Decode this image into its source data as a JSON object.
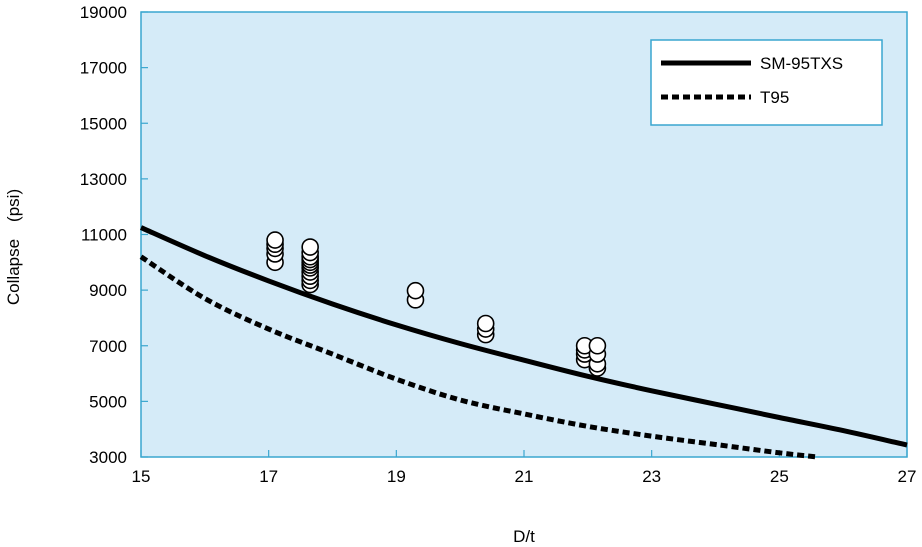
{
  "chart_data": {
    "type": "scatter",
    "xlabel": "D/t",
    "ylabel": "Collapse　(psi)",
    "xlim": [
      15,
      27
    ],
    "ylim": [
      3000,
      19000
    ],
    "xticks": [
      15,
      17,
      19,
      21,
      23,
      25,
      27
    ],
    "yticks": [
      3000,
      5000,
      7000,
      9000,
      11000,
      13000,
      15000,
      17000,
      19000
    ],
    "grid": false,
    "legend_position": "top-right",
    "colors": {
      "plot_background": "#d5ebf8",
      "frame": "#3aa6cf",
      "lines": "#000000",
      "markers_fill": "#ffffff",
      "markers_edge": "#000000"
    },
    "series": [
      {
        "name": "SM-95TXS",
        "kind": "line",
        "style": "solid",
        "x": [
          15,
          16,
          17,
          18,
          19,
          20,
          21,
          22,
          23,
          24,
          25,
          26,
          27
        ],
        "y": [
          11250,
          10240,
          9330,
          8500,
          7750,
          7080,
          6480,
          5900,
          5380,
          4900,
          4420,
          3950,
          3430
        ]
      },
      {
        "name": "T95",
        "kind": "line",
        "style": "dashed",
        "x": [
          15,
          16,
          17,
          18,
          19,
          20,
          21,
          22,
          23,
          24,
          25,
          25.6
        ],
        "y": [
          10200,
          8700,
          7600,
          6700,
          5800,
          5050,
          4550,
          4100,
          3750,
          3450,
          3150,
          3000
        ]
      },
      {
        "name": "",
        "kind": "points",
        "x": [
          17.1,
          17.1,
          17.1,
          17.1,
          17.1,
          17.65,
          17.65,
          17.65,
          17.65,
          17.65,
          17.65,
          17.65,
          17.65,
          17.65,
          17.65,
          17.65,
          19.3,
          19.3,
          20.4,
          20.4,
          20.4,
          21.95,
          21.95,
          21.95,
          21.95,
          22.15,
          22.15,
          22.15,
          22.15
        ],
        "y": [
          10000,
          10300,
          10500,
          10650,
          10800,
          9200,
          9350,
          9500,
          9650,
          9800,
          9900,
          10000,
          10100,
          10200,
          10350,
          10550,
          8650,
          8980,
          7400,
          7600,
          7800,
          6500,
          6700,
          6850,
          7000,
          6200,
          6350,
          6700,
          7000
        ]
      }
    ]
  }
}
